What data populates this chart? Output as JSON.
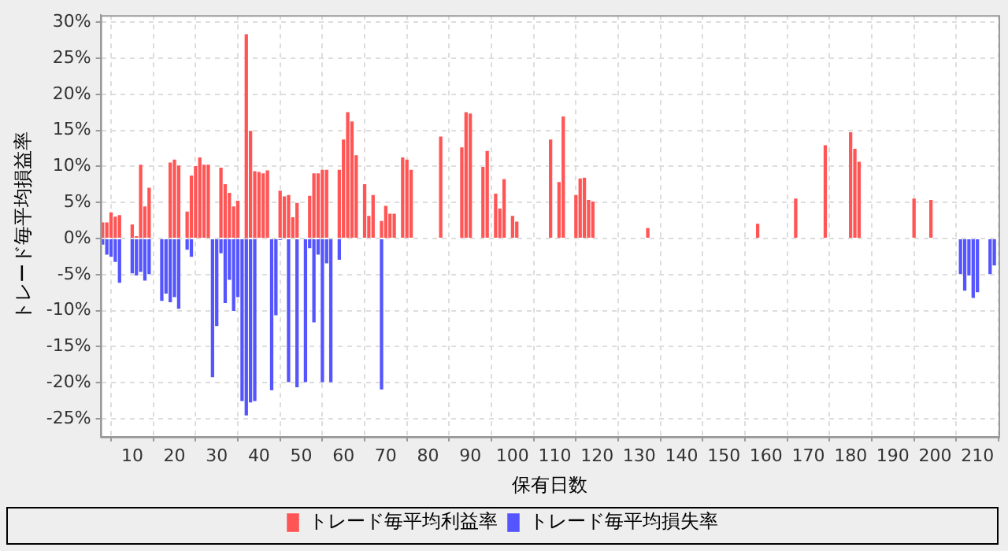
{
  "chart_data": {
    "type": "bar",
    "xlabel": "保有日数",
    "ylabel": "トレード毎平均損益率",
    "series": [
      {
        "name": "トレード毎平均利益率",
        "color": "#ff5555",
        "x": [
          3,
          4,
          5,
          6,
          7,
          10,
          11,
          12,
          13,
          14,
          19,
          20,
          21,
          23,
          24,
          25,
          26,
          27,
          28,
          31,
          32,
          33,
          34,
          35,
          37,
          38,
          39,
          40,
          41,
          42,
          45,
          46,
          47,
          48,
          49,
          52,
          53,
          54,
          55,
          56,
          59,
          60,
          61,
          62,
          63,
          65,
          66,
          67,
          69,
          70,
          71,
          72,
          74,
          75,
          76,
          83,
          88,
          89,
          90,
          93,
          94,
          96,
          97,
          98,
          100,
          101,
          109,
          111,
          112,
          115,
          116,
          117,
          118,
          119,
          132,
          158,
          167,
          174,
          180,
          181,
          182,
          195,
          199
        ],
        "values": [
          2.3,
          2.3,
          3.7,
          3.1,
          3.3,
          2.0,
          0.4,
          10.3,
          4.5,
          7.1,
          10.6,
          11.0,
          10.2,
          3.8,
          8.8,
          10.1,
          11.3,
          10.3,
          10.3,
          9.9,
          7.6,
          6.4,
          4.5,
          5.3,
          28.4,
          15.0,
          9.4,
          9.3,
          9.1,
          9.5,
          6.7,
          5.9,
          6.1,
          3.0,
          5.0,
          6.0,
          9.1,
          9.1,
          9.6,
          9.6,
          9.6,
          13.8,
          17.6,
          16.3,
          11.6,
          7.6,
          3.2,
          6.1,
          2.5,
          4.6,
          3.5,
          3.5,
          11.3,
          11.0,
          9.6,
          14.2,
          12.7,
          17.6,
          17.4,
          10.0,
          12.2,
          6.3,
          4.2,
          8.3,
          3.2,
          2.4,
          13.8,
          7.9,
          17.0,
          6.1,
          8.4,
          8.5,
          5.4,
          5.2,
          1.5,
          2.1,
          5.6,
          13.0,
          14.8,
          12.5,
          10.7,
          5.6,
          5.4
        ]
      },
      {
        "name": "トレード毎平均損失率",
        "color": "#5555ff",
        "x": [
          3,
          4,
          5,
          6,
          7,
          10,
          11,
          12,
          13,
          14,
          17,
          18,
          19,
          20,
          21,
          23,
          24,
          29,
          30,
          31,
          32,
          33,
          34,
          35,
          36,
          37,
          38,
          39,
          43,
          44,
          45,
          47,
          49,
          51,
          52,
          53,
          54,
          55,
          56,
          57,
          59,
          69,
          206,
          207,
          208,
          209,
          210,
          213,
          214
        ],
        "values": [
          -0.9,
          -2.3,
          -2.6,
          -3.3,
          -6.2,
          -4.9,
          -5.2,
          -4.7,
          -5.9,
          -5.0,
          -8.7,
          -7.7,
          -8.9,
          -8.2,
          -9.8,
          -1.6,
          -2.6,
          -19.3,
          -12.2,
          -2.1,
          -9.0,
          -5.8,
          -10.1,
          -8.2,
          -22.6,
          -24.6,
          -22.8,
          -22.6,
          -21.1,
          -10.7,
          -0.2,
          -20.0,
          -20.7,
          -20.0,
          -1.4,
          -11.7,
          -2.3,
          -20.0,
          -3.5,
          -20.0,
          -3.0,
          -21.0,
          -5.0,
          -7.3,
          -5.2,
          -8.3,
          -7.5,
          -5.0,
          -3.8
        ]
      }
    ],
    "xlim": [
      2.5,
      215
    ],
    "xticks": [
      10,
      20,
      30,
      40,
      50,
      60,
      70,
      80,
      90,
      100,
      110,
      120,
      130,
      140,
      150,
      160,
      170,
      180,
      190,
      200,
      210
    ],
    "ylim": [
      -27.5,
      31
    ],
    "yticks": [
      {
        "value": -25,
        "label": "-25%"
      },
      {
        "value": -20,
        "label": "-20%"
      },
      {
        "value": -15,
        "label": "-15%"
      },
      {
        "value": -10,
        "label": "-10%"
      },
      {
        "value": -5,
        "label": "-5%"
      },
      {
        "value": 0,
        "label": "0%"
      },
      {
        "value": 5,
        "label": "5%"
      },
      {
        "value": 10,
        "label": "10%"
      },
      {
        "value": 15,
        "label": "15%"
      },
      {
        "value": 20,
        "label": "20%"
      },
      {
        "value": 25,
        "label": "25%"
      },
      {
        "value": 30,
        "label": "30%"
      }
    ],
    "grid": true,
    "legend": "bottom"
  }
}
